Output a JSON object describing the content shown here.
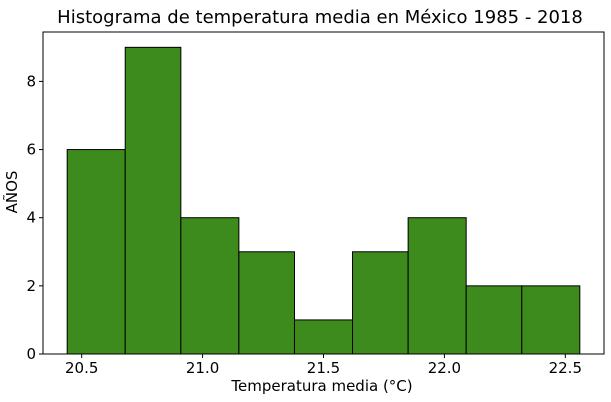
{
  "chart_data": {
    "type": "bar",
    "title": "Histograma de temperatura media en México 1985 - 2018",
    "xlabel": "Temperatura media (°C)",
    "ylabel": "AÑOS",
    "bins": [
      {
        "start": 20.44,
        "end": 20.68,
        "count": 6
      },
      {
        "start": 20.68,
        "end": 20.91,
        "count": 9
      },
      {
        "start": 20.91,
        "end": 21.15,
        "count": 4
      },
      {
        "start": 21.15,
        "end": 21.38,
        "count": 3
      },
      {
        "start": 21.38,
        "end": 21.62,
        "count": 1
      },
      {
        "start": 21.62,
        "end": 21.85,
        "count": 3
      },
      {
        "start": 21.85,
        "end": 22.09,
        "count": 4
      },
      {
        "start": 22.09,
        "end": 22.32,
        "count": 2
      },
      {
        "start": 22.32,
        "end": 22.56,
        "count": 2
      }
    ],
    "xlim": [
      20.34,
      22.66
    ],
    "ylim": [
      0,
      9.45
    ],
    "xticks": [
      "20.5",
      "21.0",
      "21.5",
      "22.0",
      "22.5"
    ],
    "yticks": [
      "0",
      "2",
      "4",
      "6",
      "8"
    ],
    "bar_color": "#3d8b1d",
    "edge_color": "#000000",
    "grid": false
  }
}
